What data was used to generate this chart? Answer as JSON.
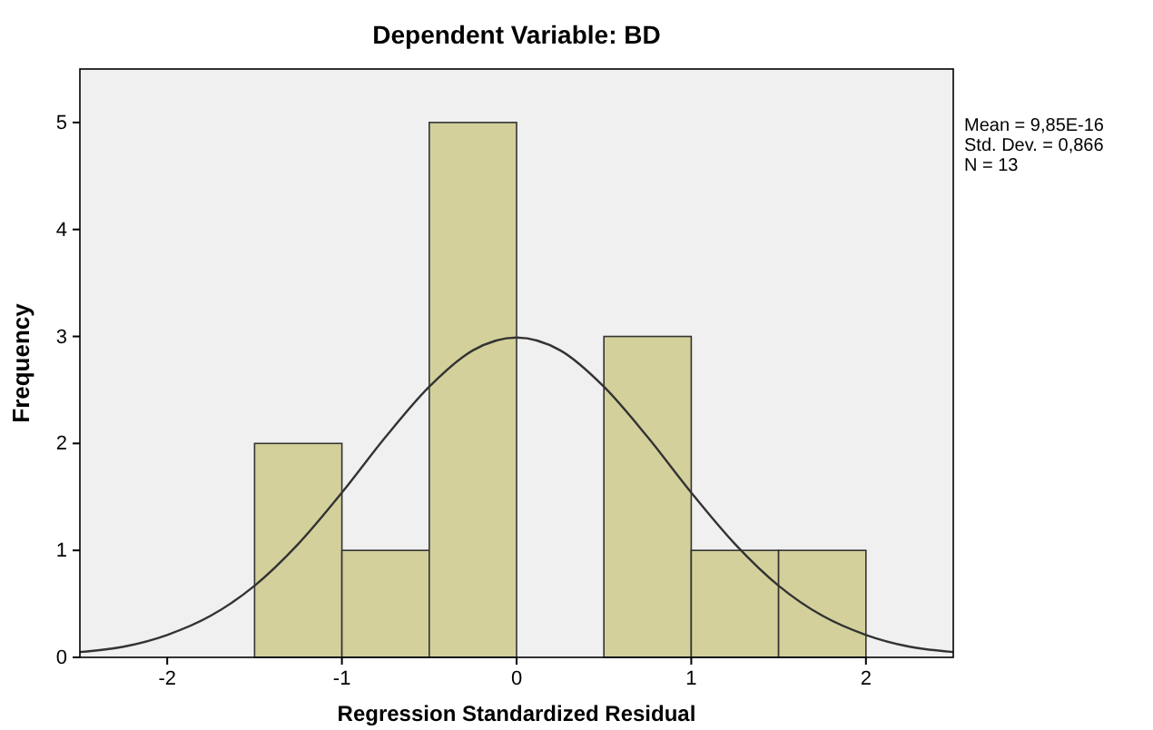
{
  "chart_data": {
    "type": "histogram",
    "title": "Dependent Variable: BD",
    "xlabel": "Regression Standardized Residual",
    "ylabel": "Frequency",
    "bins": [
      -1.5,
      -1,
      -0.5,
      0,
      0.5,
      1,
      1.5,
      2
    ],
    "values": [
      2,
      1,
      5,
      0,
      3,
      1,
      1
    ],
    "color": "#d3d09b",
    "xlim": [
      -2.5,
      2.5
    ],
    "xticks": [
      -2,
      -1,
      0,
      1,
      2
    ],
    "ylim": [
      0,
      5.5
    ],
    "yticks": [
      0,
      1,
      2,
      3,
      4,
      5
    ],
    "series": [
      {
        "type": "line",
        "color": "#333333",
        "x": [
          -2.5,
          -2.25,
          -2,
          -1.75,
          -1.5,
          -1.25,
          -1,
          -0.75,
          -0.5,
          -0.25,
          0,
          0.25,
          0.5,
          0.75,
          1,
          1.25,
          1.5,
          1.75,
          2,
          2.25,
          2.5
        ],
        "values": [
          0.05,
          0.1,
          0.21,
          0.39,
          0.67,
          1.06,
          1.54,
          2.06,
          2.53,
          2.87,
          2.99,
          2.87,
          2.53,
          2.06,
          1.54,
          1.06,
          0.67,
          0.39,
          0.21,
          0.1,
          0.05
        ]
      }
    ],
    "annotations": [
      "Mean = 9,85E-16",
      "Std. Dev. = 0,866",
      "N = 13"
    ],
    "grid": false,
    "marker": "none"
  }
}
